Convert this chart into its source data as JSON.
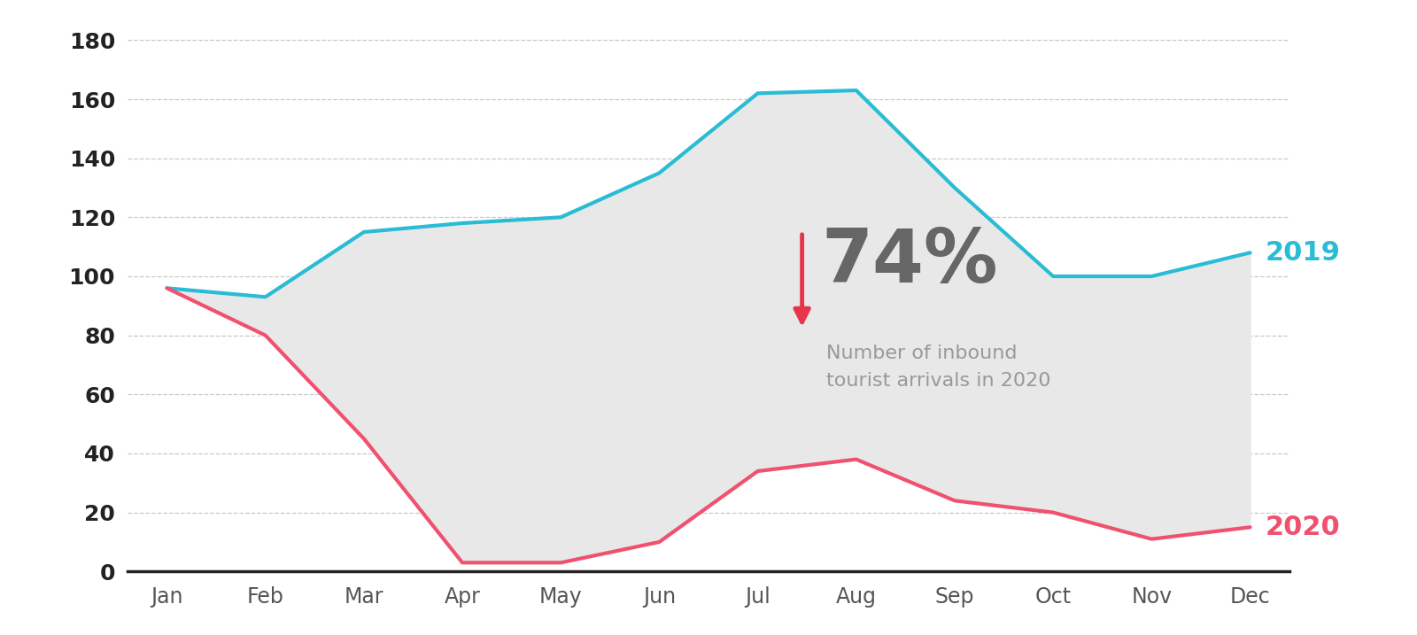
{
  "months": [
    "Jan",
    "Feb",
    "Mar",
    "Apr",
    "May",
    "Jun",
    "Jul",
    "Aug",
    "Sep",
    "Oct",
    "Nov",
    "Dec"
  ],
  "y2019": [
    96,
    93,
    115,
    118,
    120,
    135,
    162,
    163,
    130,
    100,
    100,
    108
  ],
  "y2020": [
    96,
    80,
    45,
    3,
    3,
    10,
    34,
    38,
    24,
    20,
    11,
    15
  ],
  "color_2019": "#29bcd4",
  "color_2020": "#f0516e",
  "fill_color": "#e8e8e8",
  "background_color": "#ffffff",
  "grid_color": "#c8c8c8",
  "ylim": [
    0,
    185
  ],
  "yticks": [
    0,
    20,
    40,
    60,
    80,
    100,
    120,
    140,
    160,
    180
  ],
  "label_2019": "2019",
  "label_2020": "2020",
  "annotation_pct": "74%",
  "annotation_arrow_color": "#e8344a",
  "annotation_pct_color": "#666666",
  "annotation_text": "Number of inbound\ntourist arrivals in 2020",
  "annotation_text_color": "#999999",
  "line_width": 3.0,
  "ytick_fontsize": 18,
  "xtick_fontsize": 17,
  "year_label_fontsize": 22,
  "pct_fontsize": 60,
  "desc_fontsize": 16
}
